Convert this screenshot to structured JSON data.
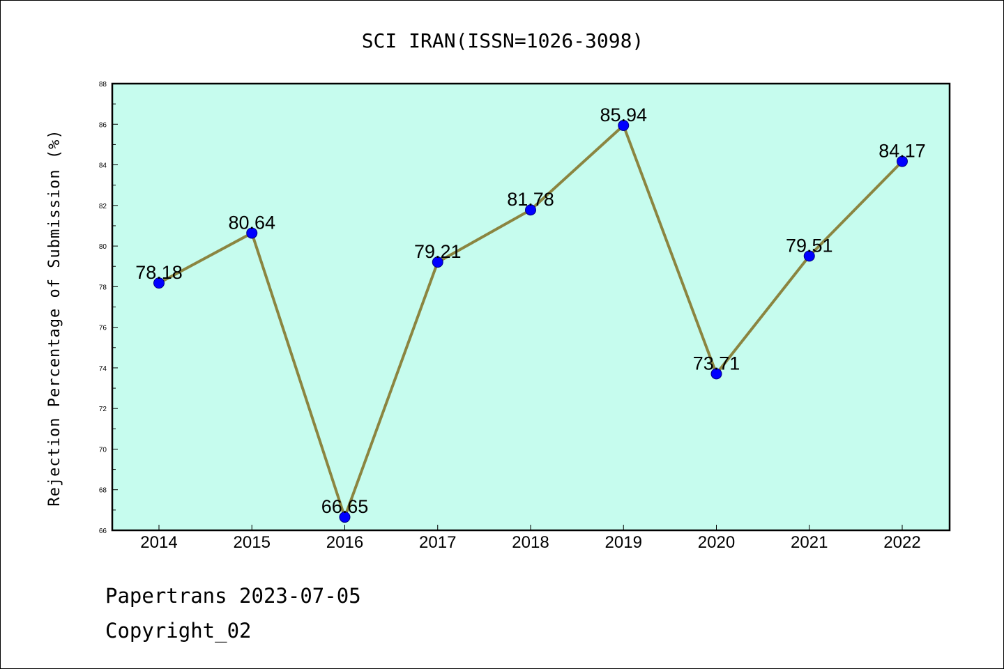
{
  "chart_data": {
    "type": "line",
    "title": "SCI IRAN(ISSN=1026-3098)",
    "xlabel": "",
    "ylabel": "Rejection Percentage of Submission (%)",
    "categories": [
      "2014",
      "2015",
      "2016",
      "2017",
      "2018",
      "2019",
      "2020",
      "2021",
      "2022"
    ],
    "series": [
      {
        "values": [
          78.18,
          80.64,
          66.65,
          79.21,
          81.78,
          85.94,
          73.71,
          79.51,
          84.17
        ],
        "labels": [
          "78.18",
          "80.64",
          "66.65",
          "79.21",
          "81.78",
          "85.94",
          "73.71",
          "79.51",
          "84.17"
        ]
      }
    ],
    "ylim": [
      66,
      88
    ],
    "yticks": [
      "66",
      "68",
      "70",
      "72",
      "74",
      "76",
      "78",
      "80",
      "82",
      "84",
      "86",
      "88"
    ],
    "grid": false,
    "colors": {
      "background": "#c6fcee",
      "line": "#8b8540",
      "marker": "#0000ff",
      "marker_edge": "#000080"
    }
  },
  "footer": {
    "line1": "Papertrans 2023-07-05",
    "line2": "Copyright_02"
  }
}
